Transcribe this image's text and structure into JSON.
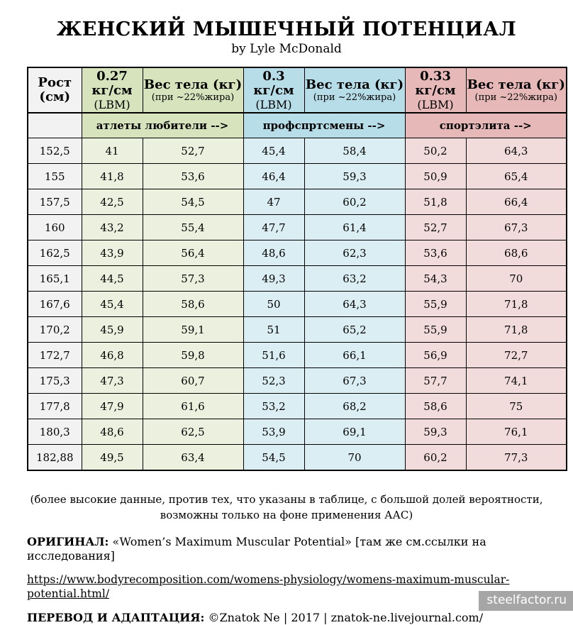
{
  "page": {
    "title": "ЖЕНСКИЙ МЫШЕЧНЫЙ ПОТЕНЦИАЛ",
    "subtitle": "by Lyle McDonald"
  },
  "colors": {
    "amateur_header": "#d6e3bc",
    "amateur_cell": "#ebf1de",
    "pro_header": "#b7dde8",
    "pro_cell": "#daeef3",
    "elite_header": "#e6b9b8",
    "elite_cell": "#f2dcdb",
    "height_column": "#f2f2f2",
    "watermark_bg": "#a6a6a6"
  },
  "table": {
    "headers": [
      {
        "line1": "Рост",
        "line2": "(см)"
      },
      {
        "line1": "0.27",
        "line2": "кг/см",
        "line3": "(LBM)"
      },
      {
        "line1": "Вес тела (кг)",
        "line2": "(при ~22%жира)"
      },
      {
        "line1": "0.3",
        "line2": "кг/см",
        "line3": "(LBM)"
      },
      {
        "line1": "Вес тела (кг)",
        "line2": "(при ~22%жира)"
      },
      {
        "line1": "0.33",
        "line2": "кг/см",
        "line3": "(LBM)"
      },
      {
        "line1": "Вес тела (кг)",
        "line2": "(при ~22%жира)"
      }
    ],
    "groups": [
      "атлеты любители  -->",
      "профспртсмены -->",
      "спортэлита -->"
    ],
    "rows": [
      [
        "152,5",
        "41",
        "52,7",
        "45,4",
        "58,4",
        "50,2",
        "64,3"
      ],
      [
        "155",
        "41,8",
        "53,6",
        "46,4",
        "59,3",
        "50,9",
        "65,4"
      ],
      [
        "157,5",
        "42,5",
        "54,5",
        "47",
        "60,2",
        "51,8",
        "66,4"
      ],
      [
        "160",
        "43,2",
        "55,4",
        "47,7",
        "61,4",
        "52,7",
        "67,3"
      ],
      [
        "162,5",
        "43,9",
        "56,4",
        "48,6",
        "62,3",
        "53,6",
        "68,6"
      ],
      [
        "165,1",
        "44,5",
        "57,3",
        "49,3",
        "63,2",
        "54,3",
        "70"
      ],
      [
        "167,6",
        "45,4",
        "58,6",
        "50",
        "64,3",
        "55,9",
        "71,8"
      ],
      [
        "170,2",
        "45,9",
        "59,1",
        "51",
        "65,2",
        "55,9",
        "71,8"
      ],
      [
        "172,7",
        "46,8",
        "59,8",
        "51,6",
        "66,1",
        "56,9",
        "72,7"
      ],
      [
        "175,3",
        "47,3",
        "60,7",
        "52,3",
        "67,3",
        "57,7",
        "74,1"
      ],
      [
        "177,8",
        "47,9",
        "61,6",
        "53,2",
        "68,2",
        "58,6",
        "75"
      ],
      [
        "180,3",
        "48,6",
        "62,5",
        "53,9",
        "69,1",
        "59,3",
        "76,1"
      ],
      [
        "182,88",
        "49,5",
        "63,4",
        "54,5",
        "70",
        "60,2",
        "77,3"
      ]
    ]
  },
  "footnote": "(более высокие данные, против тех, что указаны в таблице, с большой долей вероятности, возможны только на фоне применения ААС)",
  "credits": {
    "original_label": "ОРИГИНАЛ:",
    "original_text": " «Women’s Maximum Muscular Potential» [там же см.ссылки на исследования]",
    "link": "https://www.bodyrecomposition.com/womens-physiology/womens-maximum-muscular-potential.html/",
    "translation_label": "ПЕРЕВОД И АДАПТАЦИЯ:",
    "translation_text": " ©Znatok Ne | 2017 | znatok-ne.livejournal.com/"
  },
  "watermark": "steelfactor.ru"
}
